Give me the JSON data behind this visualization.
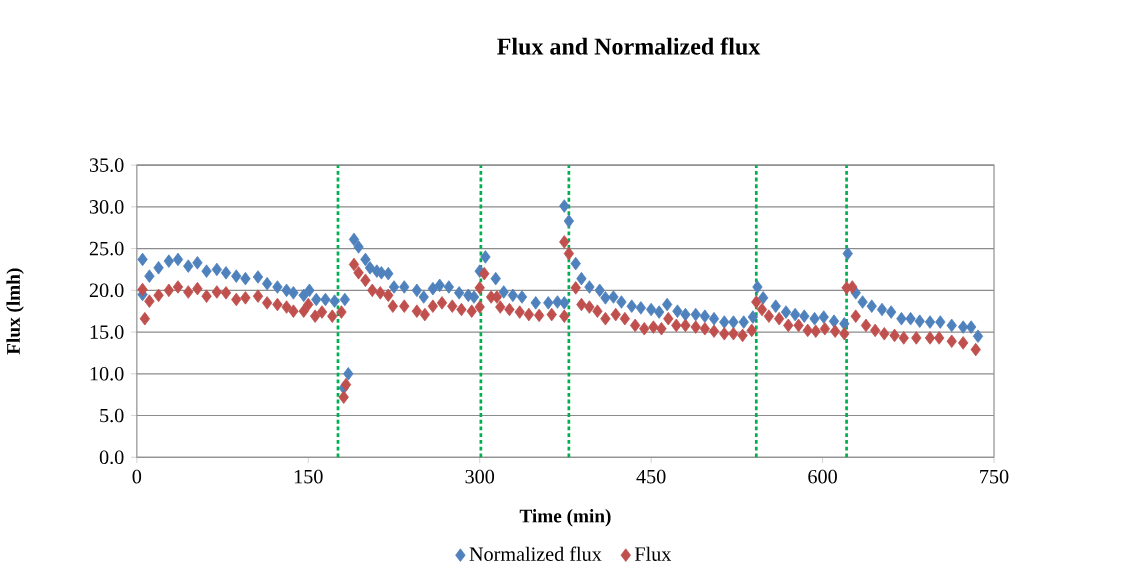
{
  "chart_data": {
    "type": "scatter",
    "title": "Flux and Normalized flux",
    "xlabel": "Time (min)",
    "ylabel": "Flux (lmh)",
    "xlim": [
      0,
      750
    ],
    "xticks": [
      0,
      150,
      300,
      450,
      600,
      750
    ],
    "ylim": [
      0,
      35
    ],
    "yticks": [
      {
        "value": 0,
        "label": "0.0"
      },
      {
        "value": 5,
        "label": "5.0"
      },
      {
        "value": 10,
        "label": "10.0"
      },
      {
        "value": 15,
        "label": "15.0"
      },
      {
        "value": 20,
        "label": "20.0"
      },
      {
        "value": 25,
        "label": "25.0"
      },
      {
        "value": 30,
        "label": "30.0"
      },
      {
        "value": 35,
        "label": "35.0"
      }
    ],
    "grid": "y",
    "legend": "bottom",
    "marker": "diamond",
    "series": [
      {
        "name": "Normalized flux",
        "color": "#4f81bd",
        "x": [
          5,
          5,
          11,
          19,
          28,
          36,
          45,
          53,
          61,
          70,
          78,
          87,
          95,
          106,
          114,
          123,
          131,
          137,
          146,
          151,
          157,
          165,
          173,
          182,
          181,
          185,
          190,
          194,
          200,
          204,
          210,
          214,
          220,
          225,
          234,
          245,
          251,
          259,
          265,
          273,
          282,
          290,
          295,
          300,
          305,
          314,
          321,
          329,
          337,
          349,
          360,
          368,
          374,
          374,
          378,
          384,
          389,
          396,
          405,
          410,
          417,
          424,
          433,
          441,
          450,
          457,
          464,
          473,
          480,
          489,
          497,
          505,
          514,
          522,
          531,
          539,
          543,
          548,
          559,
          568,
          576,
          584,
          593,
          601,
          610,
          619,
          622,
          629,
          635,
          643,
          652,
          660,
          669,
          677,
          685,
          694,
          703,
          713,
          723,
          730,
          736
        ],
        "values": [
          23.7,
          19.5,
          21.7,
          22.7,
          23.5,
          23.7,
          22.9,
          23.3,
          22.3,
          22.5,
          22.1,
          21.7,
          21.4,
          21.6,
          20.8,
          20.4,
          20.0,
          19.7,
          19.4,
          20.0,
          18.9,
          18.9,
          18.7,
          18.9,
          8.3,
          10.0,
          26.1,
          25.2,
          23.7,
          22.7,
          22.3,
          22.1,
          22.0,
          20.4,
          20.4,
          20.0,
          19.2,
          20.2,
          20.6,
          20.4,
          19.7,
          19.4,
          19.2,
          22.3,
          24.0,
          21.4,
          19.8,
          19.4,
          19.2,
          18.5,
          18.5,
          18.6,
          18.5,
          30.1,
          28.3,
          23.2,
          21.4,
          20.4,
          20.0,
          19.1,
          19.2,
          18.6,
          18.1,
          17.9,
          17.7,
          17.4,
          18.3,
          17.5,
          17.1,
          17.1,
          16.9,
          16.6,
          16.2,
          16.2,
          16.2,
          16.8,
          20.4,
          19.1,
          18.1,
          17.4,
          17.1,
          16.9,
          16.6,
          16.8,
          16.3,
          16.0,
          24.4,
          19.7,
          18.6,
          18.1,
          17.7,
          17.4,
          16.6,
          16.6,
          16.3,
          16.2,
          16.2,
          15.8,
          15.6,
          15.6,
          14.5
        ]
      },
      {
        "name": "Flux",
        "color": "#c0504d",
        "x": [
          5,
          7,
          11,
          19,
          28,
          36,
          45,
          53,
          61,
          70,
          78,
          87,
          95,
          106,
          114,
          123,
          131,
          137,
          146,
          150,
          156,
          162,
          171,
          179,
          181,
          183,
          190,
          194,
          200,
          206,
          213,
          220,
          224,
          234,
          245,
          252,
          259,
          267,
          276,
          284,
          293,
          300,
          300,
          304,
          310,
          315,
          318,
          326,
          335,
          343,
          352,
          363,
          374,
          374,
          378,
          384,
          389,
          396,
          403,
          410,
          419,
          427,
          436,
          444,
          452,
          459,
          465,
          472,
          480,
          489,
          497,
          505,
          514,
          522,
          530,
          538,
          542,
          547,
          553,
          562,
          570,
          579,
          587,
          594,
          602,
          611,
          619,
          621,
          626,
          629,
          638,
          646,
          654,
          663,
          671,
          682,
          694,
          702,
          713,
          723,
          734
        ],
        "values": [
          20.1,
          16.6,
          18.7,
          19.4,
          20.0,
          20.4,
          19.8,
          20.2,
          19.3,
          19.8,
          19.7,
          18.9,
          19.1,
          19.3,
          18.5,
          18.3,
          18.0,
          17.5,
          17.5,
          18.3,
          16.9,
          17.4,
          16.9,
          17.4,
          7.2,
          8.7,
          23.1,
          22.1,
          21.2,
          20.0,
          19.7,
          19.4,
          18.1,
          18.1,
          17.5,
          17.1,
          18.1,
          18.5,
          18.1,
          17.7,
          17.5,
          18.0,
          20.3,
          22.0,
          19.2,
          19.2,
          18.0,
          17.7,
          17.4,
          17.1,
          17.0,
          17.1,
          16.9,
          25.8,
          24.4,
          20.3,
          18.3,
          18.0,
          17.5,
          16.6,
          17.1,
          16.6,
          15.8,
          15.4,
          15.6,
          15.4,
          16.6,
          15.8,
          15.8,
          15.6,
          15.4,
          15.1,
          14.8,
          14.8,
          14.6,
          15.2,
          18.6,
          17.7,
          16.9,
          16.6,
          15.8,
          15.8,
          15.2,
          15.1,
          15.4,
          15.1,
          14.8,
          20.3,
          20.4,
          16.9,
          15.8,
          15.2,
          14.8,
          14.6,
          14.3,
          14.3,
          14.3,
          14.3,
          13.9,
          13.7,
          12.9
        ]
      }
    ],
    "ref_lines": [
      {
        "axis": "x",
        "value": 176,
        "color": "#00b050",
        "line_style": "dotted"
      },
      {
        "axis": "x",
        "value": 301,
        "color": "#00b050",
        "line_style": "dotted"
      },
      {
        "axis": "x",
        "value": 378,
        "color": "#00b050",
        "line_style": "dotted"
      },
      {
        "axis": "x",
        "value": 542,
        "color": "#00b050",
        "line_style": "dotted"
      },
      {
        "axis": "x",
        "value": 621,
        "color": "#00b050",
        "line_style": "dotted"
      }
    ]
  }
}
